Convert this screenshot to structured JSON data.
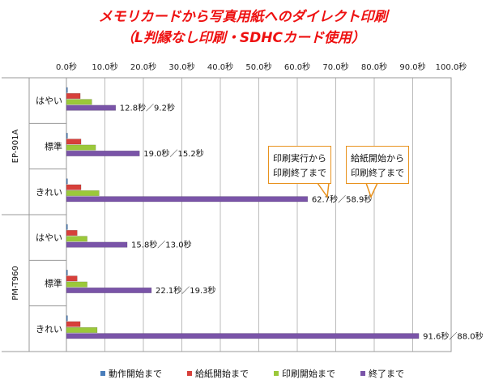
{
  "title_line1": "メモリカードから写真用紙へのダイレクト印刷",
  "title_line2": "（L判縁なし印刷・SDHCカード使用）",
  "callouts": [
    {
      "line1": "印刷実行から",
      "line2": "印刷終了まで"
    },
    {
      "line1": "給紙開始から",
      "line2": "印刷終了まで"
    }
  ],
  "chart_data": {
    "type": "bar",
    "orientation": "horizontal",
    "stacked": false,
    "x_ticks": [
      "0.0秒",
      "10.0秒",
      "20.0秒",
      "30.0秒",
      "40.0秒",
      "50.0秒",
      "60.0秒",
      "70.0秒",
      "80.0秒",
      "90.0秒",
      "100.0秒"
    ],
    "xlim": [
      0,
      100
    ],
    "groups": [
      {
        "name": "EP-901A",
        "categories": [
          "はやい",
          "標準",
          "きれい"
        ]
      },
      {
        "name": "PM-T960",
        "categories": [
          "はやい",
          "標準",
          "きれい"
        ]
      }
    ],
    "series": [
      {
        "name": "動作開始まで",
        "color": "#4a7ebb",
        "values": [
          0.3,
          0.3,
          0.3,
          0.3,
          0.3,
          0.3
        ]
      },
      {
        "name": "給紙開始まで",
        "color": "#d7403b",
        "values": [
          3.6,
          3.8,
          3.8,
          2.8,
          2.8,
          3.6
        ]
      },
      {
        "name": "印刷開始まで",
        "color": "#9bc83a",
        "values": [
          6.6,
          7.6,
          8.5,
          5.4,
          5.4,
          8.0
        ]
      },
      {
        "name": "終了まで",
        "color": "#7a54a8",
        "values": [
          12.8,
          19.0,
          62.7,
          15.8,
          22.1,
          91.6
        ]
      }
    ],
    "data_labels": [
      "12.8秒／9.2秒",
      "19.0秒／15.2秒",
      "62.7秒／58.9秒",
      "15.8秒／13.0秒",
      "22.1秒／19.3秒",
      "91.6秒／88.0秒"
    ],
    "legend_position": "bottom",
    "grid": true
  }
}
